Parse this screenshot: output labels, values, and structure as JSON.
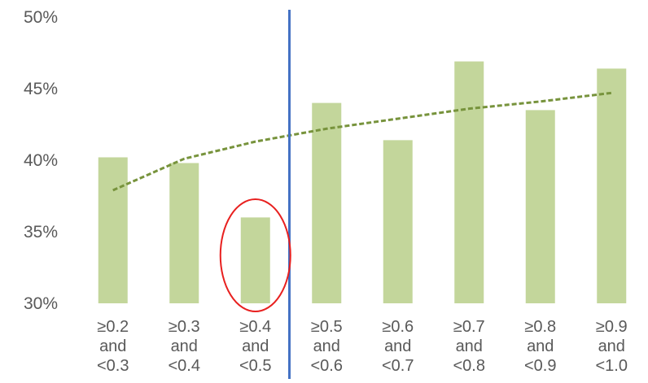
{
  "chart_data": {
    "type": "bar",
    "categories": [
      [
        "≥0.2",
        "and",
        "<0.3"
      ],
      [
        "≥0.3",
        "and",
        "<0.4"
      ],
      [
        "≥0.4",
        "and",
        "<0.5"
      ],
      [
        "≥0.5",
        "and",
        "<0.6"
      ],
      [
        "≥0.6",
        "and",
        "<0.7"
      ],
      [
        "≥0.7",
        "and",
        "<0.8"
      ],
      [
        "≥0.8",
        "and",
        "<0.9"
      ],
      [
        "≥0.9",
        "and",
        "<1.0"
      ]
    ],
    "series": [
      {
        "values": [
          40.2,
          39.8,
          36.0,
          44.0,
          41.4,
          46.9,
          43.5,
          46.4
        ],
        "color": "#c3d69b"
      }
    ],
    "trendline": {
      "type": "logarithmic",
      "values": [
        37.9,
        40.1,
        41.3,
        42.2,
        42.9,
        43.6,
        44.1,
        44.7
      ],
      "color": "#77933c",
      "style": "dashed"
    },
    "ylim": [
      30,
      50
    ],
    "yticks": [
      "30%",
      "35%",
      "40%",
      "45%",
      "50%"
    ],
    "grid": false,
    "title": "",
    "xlabel": "",
    "ylabel": "",
    "annotations": {
      "highlight_circle": {
        "category_index": 2,
        "color": "#e8201f"
      },
      "vertical_divider": {
        "between_categories": [
          2,
          3
        ],
        "color": "#4472c4"
      }
    }
  }
}
